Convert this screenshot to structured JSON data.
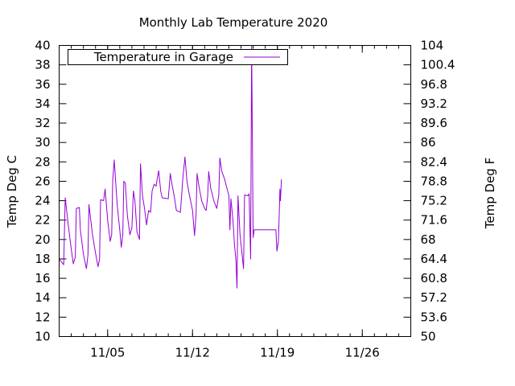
{
  "chart_data": {
    "type": "line",
    "title": "Monthly Lab Temperature 2020",
    "ylabel": "Temp Deg C",
    "y2label": "Temp Deg F",
    "ylim": [
      10,
      40
    ],
    "y2lim": [
      50,
      104
    ],
    "xlim": [
      "2020-11-01",
      "2020-11-30"
    ],
    "x_ticks": [
      {
        "x": "2020-11-05",
        "label": "11/05"
      },
      {
        "x": "2020-11-12",
        "label": "11/12"
      },
      {
        "x": "2020-11-19",
        "label": "11/19"
      },
      {
        "x": "2020-11-26",
        "label": "11/26"
      }
    ],
    "y_ticks": [
      10,
      12,
      14,
      16,
      18,
      20,
      22,
      24,
      26,
      28,
      30,
      32,
      34,
      36,
      38,
      40
    ],
    "y2_ticks": [
      "50",
      "53.6",
      "57.2",
      "60.8",
      "64.4",
      "68",
      "71.6",
      "75.2",
      "78.8",
      "82.4",
      "86",
      "89.6",
      "93.2",
      "96.8",
      "100.4",
      "104"
    ],
    "grid": false,
    "legend_position": "top-left",
    "series": [
      {
        "name": "Temperature in Garage",
        "color": "#9400d3",
        "points": [
          [
            "2020-11-01 00:00",
            18.0
          ],
          [
            "2020-11-01 06:00",
            17.6
          ],
          [
            "2020-11-01 09:00",
            17.4
          ],
          [
            "2020-11-01 12:00",
            24.3
          ],
          [
            "2020-11-01 18:00",
            21.5
          ],
          [
            "2020-11-02 00:00",
            19.0
          ],
          [
            "2020-11-02 04:00",
            17.5
          ],
          [
            "2020-11-02 08:00",
            18.2
          ],
          [
            "2020-11-02 10:00",
            23.2
          ],
          [
            "2020-11-02 16:00",
            23.3
          ],
          [
            "2020-11-02 18:00",
            21.0
          ],
          [
            "2020-11-03 00:00",
            18.5
          ],
          [
            "2020-11-03 06:00",
            17.0
          ],
          [
            "2020-11-03 09:00",
            18.4
          ],
          [
            "2020-11-03 11:00",
            23.6
          ],
          [
            "2020-11-03 18:00",
            20.5
          ],
          [
            "2020-11-04 00:00",
            18.6
          ],
          [
            "2020-11-04 05:00",
            17.2
          ],
          [
            "2020-11-04 08:00",
            18.0
          ],
          [
            "2020-11-04 10:00",
            24.1
          ],
          [
            "2020-11-04 16:00",
            24.0
          ],
          [
            "2020-11-04 19:00",
            25.2
          ],
          [
            "2020-11-05 00:00",
            22.0
          ],
          [
            "2020-11-05 05:00",
            19.8
          ],
          [
            "2020-11-05 08:00",
            20.5
          ],
          [
            "2020-11-05 10:00",
            26.0
          ],
          [
            "2020-11-05 13:00",
            28.2
          ],
          [
            "2020-11-05 19:00",
            23.5
          ],
          [
            "2020-11-06 00:00",
            21.0
          ],
          [
            "2020-11-06 03:00",
            19.2
          ],
          [
            "2020-11-06 06:00",
            20.5
          ],
          [
            "2020-11-06 08:00",
            26.0
          ],
          [
            "2020-11-06 11:00",
            25.8
          ],
          [
            "2020-11-06 15:00",
            22.5
          ],
          [
            "2020-11-06 20:00",
            20.5
          ],
          [
            "2020-11-07 00:00",
            21.2
          ],
          [
            "2020-11-07 03:00",
            25.0
          ],
          [
            "2020-11-07 06:00",
            24.0
          ],
          [
            "2020-11-07 10:00",
            20.8
          ],
          [
            "2020-11-07 15:00",
            20.0
          ],
          [
            "2020-11-07 17:00",
            27.8
          ],
          [
            "2020-11-07 21:00",
            24.5
          ],
          [
            "2020-11-08 01:00",
            23.2
          ],
          [
            "2020-11-08 05:00",
            21.5
          ],
          [
            "2020-11-08 09:00",
            23.0
          ],
          [
            "2020-11-08 13:00",
            22.8
          ],
          [
            "2020-11-08 16:00",
            25.0
          ],
          [
            "2020-11-08 20:00",
            25.7
          ],
          [
            "2020-11-09 00:00",
            25.5
          ],
          [
            "2020-11-09 02:00",
            26.2
          ],
          [
            "2020-11-09 05:00",
            27.1
          ],
          [
            "2020-11-09 09:00",
            25.0
          ],
          [
            "2020-11-09 12:00",
            24.3
          ],
          [
            "2020-11-10 00:00",
            24.2
          ],
          [
            "2020-11-10 04:00",
            26.8
          ],
          [
            "2020-11-10 08:00",
            25.5
          ],
          [
            "2020-11-10 12:00",
            24.4
          ],
          [
            "2020-11-10 16:00",
            23.0
          ],
          [
            "2020-11-11 00:00",
            22.8
          ],
          [
            "2020-11-11 05:00",
            26.4
          ],
          [
            "2020-11-11 09:00",
            28.5
          ],
          [
            "2020-11-11 13:00",
            26.0
          ],
          [
            "2020-11-11 17:00",
            24.8
          ],
          [
            "2020-11-12 00:00",
            23.0
          ],
          [
            "2020-11-12 04:00",
            20.4
          ],
          [
            "2020-11-12 07:00",
            22.6
          ],
          [
            "2020-11-12 09:00",
            26.8
          ],
          [
            "2020-11-12 13:00",
            25.4
          ],
          [
            "2020-11-12 18:00",
            24.0
          ],
          [
            "2020-11-13 00:00",
            23.2
          ],
          [
            "2020-11-13 03:00",
            23.0
          ],
          [
            "2020-11-13 06:00",
            24.5
          ],
          [
            "2020-11-13 08:00",
            27.0
          ],
          [
            "2020-11-13 12:00",
            25.3
          ],
          [
            "2020-11-13 18:00",
            24.0
          ],
          [
            "2020-11-14 00:00",
            23.2
          ],
          [
            "2020-11-14 04:00",
            24.6
          ],
          [
            "2020-11-14 06:00",
            28.4
          ],
          [
            "2020-11-14 10:00",
            27.0
          ],
          [
            "2020-11-14 15:00",
            26.3
          ],
          [
            "2020-11-14 20:00",
            25.3
          ],
          [
            "2020-11-15 00:00",
            24.5
          ],
          [
            "2020-11-15 02:00",
            21.0
          ],
          [
            "2020-11-15 04:00",
            24.2
          ],
          [
            "2020-11-15 08:00",
            22.0
          ],
          [
            "2020-11-15 11:00",
            19.5
          ],
          [
            "2020-11-15 14:00",
            17.8
          ],
          [
            "2020-11-15 16:00",
            15.0
          ],
          [
            "2020-11-15 18:00",
            24.5
          ],
          [
            "2020-11-15 22:00",
            20.5
          ],
          [
            "2020-11-16 02:00",
            18.5
          ],
          [
            "2020-11-16 05:00",
            17.0
          ],
          [
            "2020-11-16 07:00",
            24.6
          ],
          [
            "2020-11-16 13:00",
            24.5
          ],
          [
            "2020-11-16 16:00",
            24.7
          ],
          [
            "2020-11-16 19:00",
            18.0
          ],
          [
            "2020-11-16 21:00",
            40.0
          ],
          [
            "2020-11-17 00:00",
            20.2
          ],
          [
            "2020-11-17 02:00",
            21.0
          ],
          [
            "2020-11-18 00:00",
            21.0
          ],
          [
            "2020-11-18 21:00",
            21.0
          ],
          [
            "2020-11-18 23:00",
            18.8
          ],
          [
            "2020-11-19 02:00",
            19.8
          ],
          [
            "2020-11-19 05:00",
            25.2
          ],
          [
            "2020-11-19 06:00",
            24.0
          ],
          [
            "2020-11-19 08:00",
            26.2
          ]
        ]
      }
    ]
  }
}
